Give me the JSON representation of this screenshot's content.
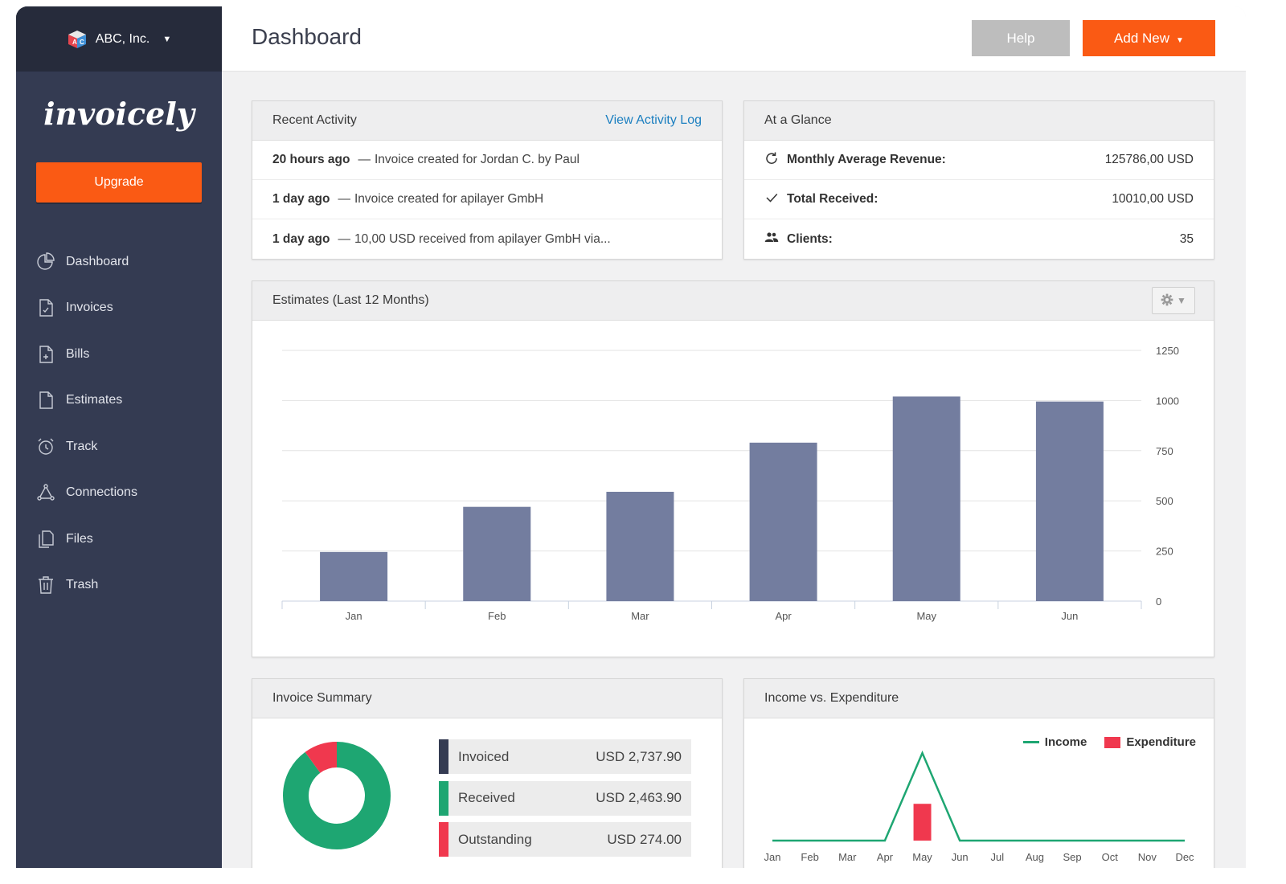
{
  "sidebar": {
    "company": "ABC, Inc.",
    "brand": "invoicely",
    "upgrade_label": "Upgrade",
    "items": [
      {
        "label": "Dashboard",
        "icon": "pie-chart-icon"
      },
      {
        "label": "Invoices",
        "icon": "invoice-icon"
      },
      {
        "label": "Bills",
        "icon": "bill-icon"
      },
      {
        "label": "Estimates",
        "icon": "document-icon"
      },
      {
        "label": "Track",
        "icon": "alarm-clock-icon"
      },
      {
        "label": "Connections",
        "icon": "connections-icon"
      },
      {
        "label": "Files",
        "icon": "files-icon"
      },
      {
        "label": "Trash",
        "icon": "trash-icon"
      }
    ]
  },
  "header": {
    "title": "Dashboard",
    "help_label": "Help",
    "add_new_label": "Add New"
  },
  "recent_activity": {
    "title": "Recent Activity",
    "link_label": "View Activity Log",
    "rows": [
      {
        "time": "20 hours ago",
        "text": "Invoice created for Jordan C. by Paul"
      },
      {
        "time": "1 day ago",
        "text": "Invoice created for apilayer GmbH"
      },
      {
        "time": "1 day ago",
        "text": "10,00 USD received from apilayer GmbH via..."
      }
    ]
  },
  "at_a_glance": {
    "title": "At a Glance",
    "rows": [
      {
        "label": "Monthly Average Revenue:",
        "value": "125786,00 USD",
        "icon": "refresh-icon"
      },
      {
        "label": "Total Received:",
        "value": "10010,00 USD",
        "icon": "check-icon"
      },
      {
        "label": "Clients:",
        "value": "35",
        "icon": "users-icon"
      }
    ]
  },
  "estimates": {
    "title": "Estimates (Last 12 Months)"
  },
  "invoice_summary": {
    "title": "Invoice Summary",
    "items": [
      {
        "label": "Invoiced",
        "value": "USD 2,737.90",
        "color": "#343b52"
      },
      {
        "label": "Received",
        "value": "USD 2,463.90",
        "color": "#1ea672"
      },
      {
        "label": "Outstanding",
        "value": "USD 274.00",
        "color": "#f0384e"
      }
    ]
  },
  "income_expenditure": {
    "title": "Income vs. Expenditure",
    "legend_income": "Income",
    "legend_expenditure": "Expenditure"
  },
  "colors": {
    "accent": "#fa5a14",
    "sidebar": "#343b52",
    "bar": "#737d9f",
    "income": "#1ea672",
    "expenditure": "#f0384e"
  },
  "chart_data": [
    {
      "type": "bar",
      "title": "Estimates (Last 12 Months)",
      "categories": [
        "Jan",
        "Feb",
        "Mar",
        "Apr",
        "May",
        "Jun"
      ],
      "values": [
        245,
        470,
        545,
        790,
        1020,
        995
      ],
      "ylim": [
        0,
        1250
      ],
      "yticks": [
        0,
        250,
        500,
        750,
        1000,
        1250
      ],
      "grid": true
    },
    {
      "type": "pie",
      "title": "Invoice Summary",
      "categories": [
        "Received",
        "Outstanding"
      ],
      "values": [
        2463.9,
        274.0
      ],
      "donut": true
    },
    {
      "type": "line",
      "title": "Income vs. Expenditure",
      "categories": [
        "Jan",
        "Feb",
        "Mar",
        "Apr",
        "May",
        "Jun",
        "Jul",
        "Aug",
        "Sep",
        "Oct",
        "Nov",
        "Dec"
      ],
      "series": [
        {
          "name": "Income",
          "type": "line",
          "values": [
            0,
            0,
            0,
            0,
            1,
            0,
            0,
            0,
            0,
            0,
            0,
            0
          ]
        },
        {
          "name": "Expenditure",
          "type": "bar",
          "values": [
            0,
            0,
            0,
            0,
            0.42,
            0,
            0,
            0,
            0,
            0,
            0,
            0
          ]
        }
      ],
      "legend": "top-right"
    }
  ]
}
